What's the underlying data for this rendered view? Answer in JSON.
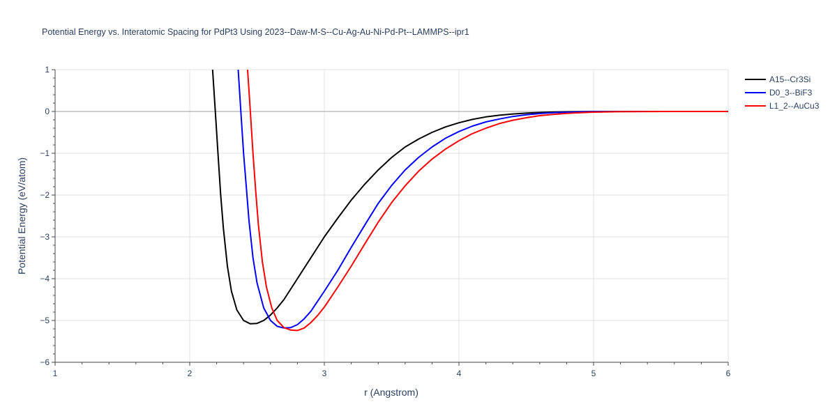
{
  "chart_data": {
    "type": "line",
    "title": "Potential Energy vs. Interatomic Spacing for PdPt3 Using 2023--Daw-M-S--Cu-Ag-Au-Ni-Pd-Pt--LAMMPS--ipr1",
    "xlabel": "r (Angstrom)",
    "ylabel": "Potential Energy (eV/atom)",
    "xlim": [
      1,
      6
    ],
    "ylim": [
      -6,
      1
    ],
    "x_ticks": [
      "1",
      "2",
      "3",
      "4",
      "5",
      "6"
    ],
    "y_ticks": [
      "1",
      "0",
      "−1",
      "−2",
      "−3",
      "−4",
      "−5",
      "−6"
    ],
    "grid": true,
    "legend_position": "top-right",
    "series": [
      {
        "name": "A15--Cr3Si",
        "color": "#000000",
        "x": [
          2.17,
          2.19,
          2.21,
          2.23,
          2.25,
          2.28,
          2.31,
          2.35,
          2.4,
          2.45,
          2.5,
          2.55,
          2.6,
          2.65,
          2.7,
          2.8,
          2.9,
          3.0,
          3.1,
          3.2,
          3.3,
          3.4,
          3.5,
          3.6,
          3.7,
          3.8,
          3.9,
          4.0,
          4.1,
          4.2,
          4.3,
          4.4,
          4.5,
          4.6,
          4.7,
          4.8,
          4.9,
          5.0,
          5.2,
          5.4,
          5.6,
          5.8,
          6.0
        ],
        "y": [
          1.0,
          0.0,
          -1.0,
          -2.0,
          -2.8,
          -3.7,
          -4.3,
          -4.75,
          -5.0,
          -5.08,
          -5.07,
          -5.0,
          -4.87,
          -4.7,
          -4.5,
          -4.0,
          -3.5,
          -3.0,
          -2.55,
          -2.12,
          -1.74,
          -1.4,
          -1.1,
          -0.85,
          -0.66,
          -0.5,
          -0.37,
          -0.27,
          -0.19,
          -0.13,
          -0.09,
          -0.06,
          -0.04,
          -0.025,
          -0.015,
          -0.008,
          -0.004,
          -0.002,
          0.0,
          0.0,
          0.0,
          0.0,
          0.0
        ]
      },
      {
        "name": "D0_3--BiF3",
        "color": "#0000ff",
        "x": [
          2.36,
          2.38,
          2.4,
          2.42,
          2.44,
          2.47,
          2.5,
          2.55,
          2.6,
          2.65,
          2.7,
          2.75,
          2.8,
          2.85,
          2.9,
          3.0,
          3.1,
          3.2,
          3.3,
          3.4,
          3.5,
          3.6,
          3.7,
          3.8,
          3.9,
          4.0,
          4.1,
          4.2,
          4.3,
          4.4,
          4.5,
          4.6,
          4.7,
          4.8,
          4.9,
          5.0,
          5.2,
          5.4,
          5.6,
          5.8,
          6.0
        ],
        "y": [
          1.0,
          0.0,
          -1.0,
          -1.8,
          -2.6,
          -3.5,
          -4.1,
          -4.7,
          -5.0,
          -5.14,
          -5.18,
          -5.17,
          -5.1,
          -4.96,
          -4.78,
          -4.3,
          -3.8,
          -3.25,
          -2.72,
          -2.2,
          -1.77,
          -1.4,
          -1.1,
          -0.85,
          -0.64,
          -0.48,
          -0.35,
          -0.25,
          -0.18,
          -0.12,
          -0.08,
          -0.05,
          -0.03,
          -0.018,
          -0.01,
          -0.005,
          -0.001,
          0.0,
          0.0,
          0.0,
          0.0
        ]
      },
      {
        "name": "L1_2--AuCu3",
        "color": "#ff0000",
        "x": [
          2.43,
          2.45,
          2.47,
          2.49,
          2.51,
          2.54,
          2.57,
          2.61,
          2.65,
          2.7,
          2.75,
          2.8,
          2.85,
          2.9,
          2.95,
          3.0,
          3.1,
          3.2,
          3.3,
          3.4,
          3.5,
          3.6,
          3.7,
          3.8,
          3.9,
          4.0,
          4.1,
          4.2,
          4.3,
          4.4,
          4.5,
          4.6,
          4.7,
          4.8,
          4.9,
          5.0,
          5.2,
          5.4,
          5.6,
          5.8,
          6.0
        ],
        "y": [
          1.0,
          0.0,
          -1.0,
          -1.9,
          -2.7,
          -3.6,
          -4.2,
          -4.7,
          -5.0,
          -5.17,
          -5.23,
          -5.24,
          -5.18,
          -5.05,
          -4.88,
          -4.68,
          -4.2,
          -3.7,
          -3.17,
          -2.65,
          -2.18,
          -1.78,
          -1.43,
          -1.14,
          -0.9,
          -0.7,
          -0.53,
          -0.4,
          -0.29,
          -0.21,
          -0.15,
          -0.1,
          -0.07,
          -0.045,
          -0.028,
          -0.016,
          -0.005,
          -0.001,
          0.0,
          0.0,
          0.0
        ]
      }
    ]
  }
}
